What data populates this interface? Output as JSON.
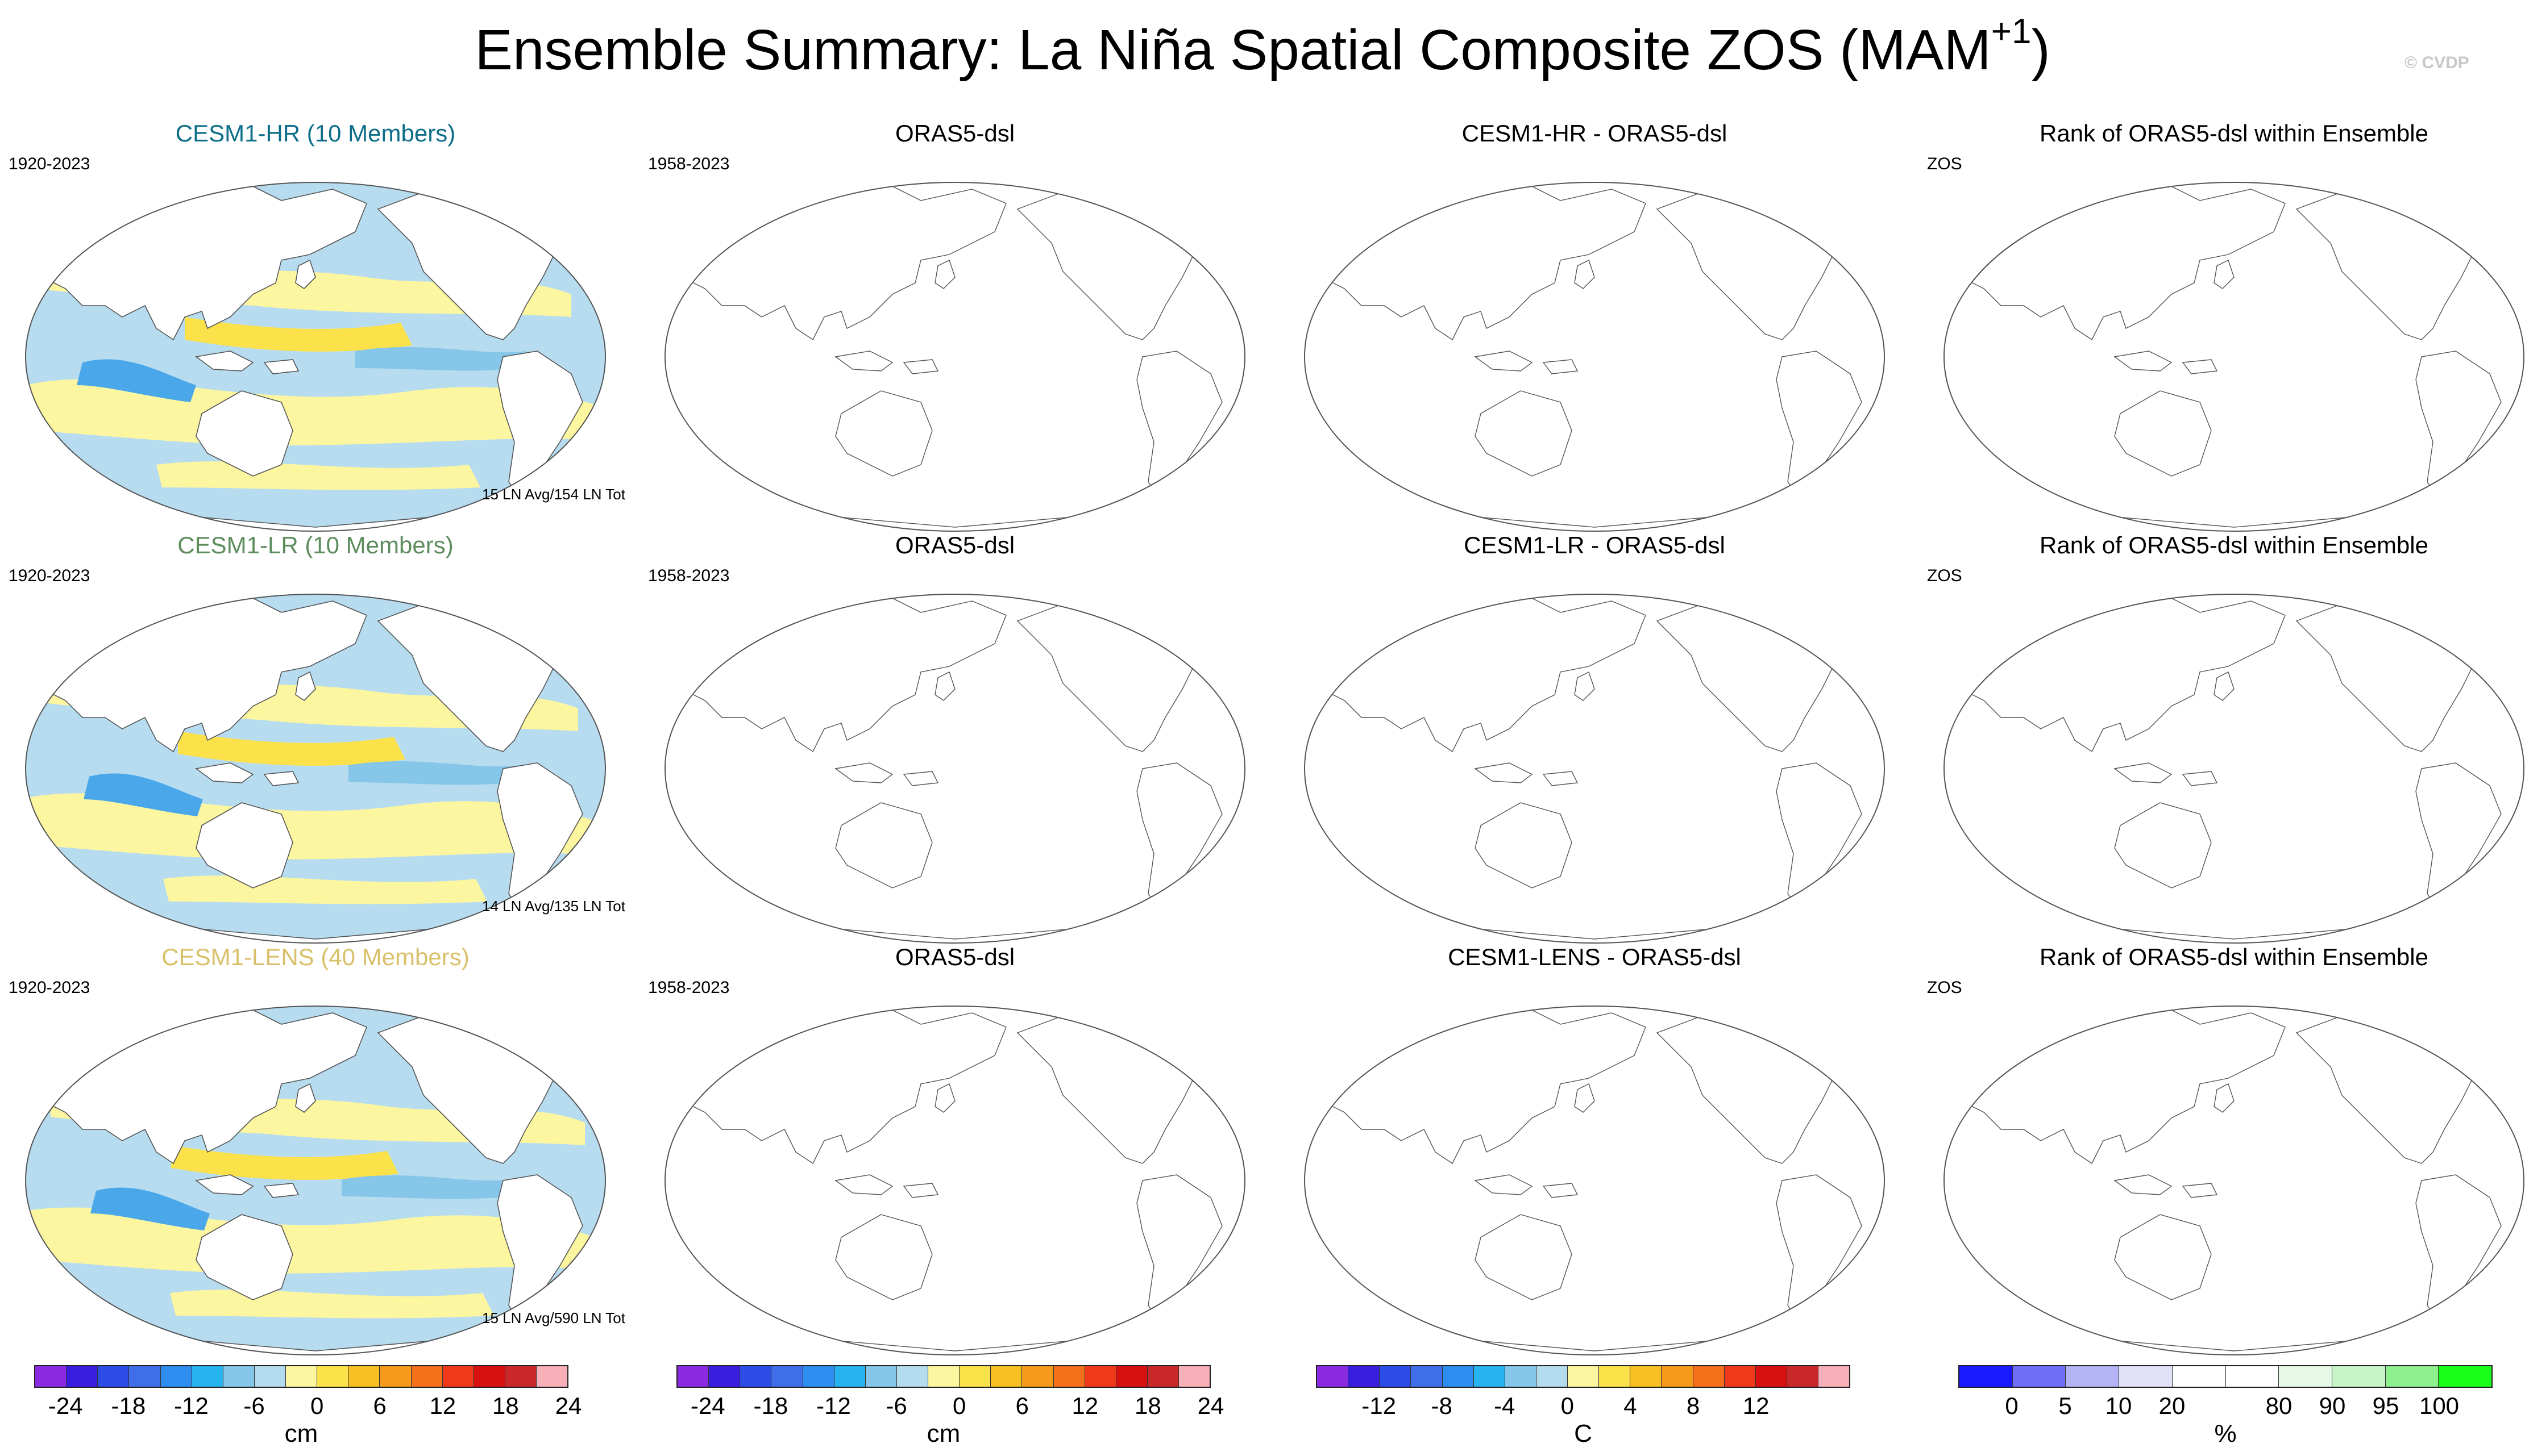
{
  "title": {
    "main": "Ensemble Summary: La Niña Spatial Composite ZOS (MAM",
    "sup": "+1",
    "close": ")"
  },
  "watermark": "© CVDP",
  "rows": [
    {
      "model": {
        "title": "CESM1-HR (10 Members)",
        "title_color": "#0e6e8a",
        "years": "1920-2023",
        "count": "15 LN Avg/154 LN Tot"
      },
      "obs": {
        "title": "ORAS5-dsl",
        "years": "1958-2023"
      },
      "diff": {
        "title": "CESM1-HR - ORAS5-dsl"
      },
      "rank": {
        "title": "Rank of ORAS5-dsl within Ensemble",
        "label": "ZOS"
      }
    },
    {
      "model": {
        "title": "CESM1-LR (10 Members)",
        "title_color": "#5d8c5d",
        "years": "1920-2023",
        "count": "14 LN Avg/135 LN Tot"
      },
      "obs": {
        "title": "ORAS5-dsl",
        "years": "1958-2023"
      },
      "diff": {
        "title": "CESM1-LR - ORAS5-dsl"
      },
      "rank": {
        "title": "Rank of ORAS5-dsl within Ensemble",
        "label": "ZOS"
      }
    },
    {
      "model": {
        "title": "CESM1-LENS (40 Members)",
        "title_color": "#d9c06a",
        "years": "1920-2023",
        "count": "15 LN Avg/590 LN Tot"
      },
      "obs": {
        "title": "ORAS5-dsl",
        "years": "1958-2023"
      },
      "diff": {
        "title": "CESM1-LENS - ORAS5-dsl"
      },
      "rank": {
        "title": "Rank of ORAS5-dsl within Ensemble",
        "label": "ZOS"
      }
    }
  ],
  "colorbars": [
    {
      "unit": "cm",
      "colors": [
        "#8a2be2",
        "#3a1ee0",
        "#2b4de5",
        "#3f6ee8",
        "#2d8ef0",
        "#27b2f0",
        "#86c6e8",
        "#b4dcef",
        "#fcf6a0",
        "#fbe14a",
        "#f8c022",
        "#f59a1a",
        "#f5701a",
        "#ee3a1a",
        "#d81010",
        "#c8282a",
        "#f8b0b8"
      ],
      "ticks": [
        "-24",
        "-18",
        "-12",
        "-6",
        "0",
        "6",
        "12",
        "18",
        "24"
      ],
      "tick_boundaries": [
        1,
        3,
        5,
        7,
        9,
        11,
        13,
        15,
        17
      ]
    },
    {
      "unit": "cm",
      "colors": [
        "#8a2be2",
        "#3a1ee0",
        "#2b4de5",
        "#3f6ee8",
        "#2d8ef0",
        "#27b2f0",
        "#86c6e8",
        "#b4dcef",
        "#fcf6a0",
        "#fbe14a",
        "#f8c022",
        "#f59a1a",
        "#f5701a",
        "#ee3a1a",
        "#d81010",
        "#c8282a",
        "#f8b0b8"
      ],
      "ticks": [
        "-24",
        "-18",
        "-12",
        "-6",
        "0",
        "6",
        "12",
        "18",
        "24"
      ],
      "tick_boundaries": [
        1,
        3,
        5,
        7,
        9,
        11,
        13,
        15,
        17
      ]
    },
    {
      "unit": "C",
      "colors": [
        "#8a2be2",
        "#3a1ee0",
        "#2b4de5",
        "#3f6ee8",
        "#2d8ef0",
        "#27b2f0",
        "#86c6e8",
        "#b4dcef",
        "#fcf6a0",
        "#fbe14a",
        "#f8c022",
        "#f59a1a",
        "#f5701a",
        "#ee3a1a",
        "#d81010",
        "#c8282a",
        "#f8b0b8"
      ],
      "ticks": [
        "-12",
        "-8",
        "-4",
        "0",
        "4",
        "8",
        "12"
      ],
      "tick_boundaries": [
        2,
        4,
        6,
        8,
        10,
        12,
        14
      ]
    },
    {
      "unit": "%",
      "colors": [
        "#1a1aff",
        "#6e6ef6",
        "#b4b4f4",
        "#e0e0f8",
        "#ffffff",
        "#ffffff",
        "#e6f8e6",
        "#c8f4c8",
        "#8ef08e",
        "#1aff1a"
      ],
      "ticks": [
        "0",
        "5",
        "10",
        "20",
        "80",
        "90",
        "95",
        "100"
      ],
      "tick_boundaries": [
        1,
        2,
        3,
        4,
        6,
        7,
        8,
        9
      ]
    }
  ]
}
